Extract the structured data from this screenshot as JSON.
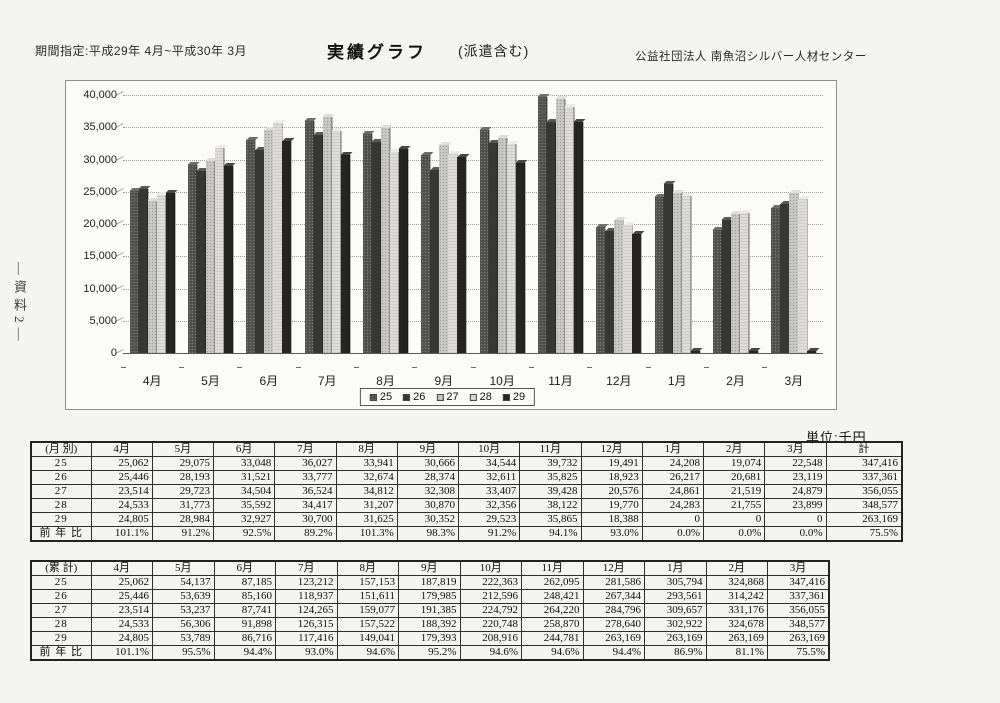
{
  "page": {
    "side_label": "―資料2―",
    "header": {
      "period": "期間指定:平成29年 4月~平成30年 3月",
      "title": "実績グラフ",
      "subtitle": "(派遣含む)",
      "org": "公益社団法人  南魚沼シルバー人材センター"
    },
    "unit_label": "単位:千円"
  },
  "chart_data": {
    "type": "bar",
    "title": "",
    "xlabel": "",
    "ylabel": "",
    "categories": [
      "4月",
      "5月",
      "6月",
      "7月",
      "8月",
      "9月",
      "10月",
      "11月",
      "12月",
      "1月",
      "2月",
      "3月"
    ],
    "series": [
      {
        "name": "25",
        "values": [
          25062,
          29075,
          33048,
          36027,
          33941,
          30666,
          34544,
          39732,
          19491,
          24208,
          19074,
          22548
        ]
      },
      {
        "name": "26",
        "values": [
          25446,
          28193,
          31521,
          33777,
          32674,
          28374,
          32611,
          35825,
          18923,
          26217,
          20681,
          23119
        ]
      },
      {
        "name": "27",
        "values": [
          23514,
          29723,
          34504,
          36524,
          34812,
          32308,
          33407,
          39428,
          20576,
          24861,
          21519,
          24879
        ]
      },
      {
        "name": "28",
        "values": [
          24533,
          31773,
          35592,
          34417,
          31207,
          30870,
          32356,
          38122,
          19770,
          24283,
          21755,
          23899
        ]
      },
      {
        "name": "29",
        "values": [
          24805,
          28984,
          32927,
          30700,
          31625,
          30352,
          29523,
          35865,
          18388,
          0,
          0,
          0
        ]
      }
    ],
    "ylim": [
      0,
      40000
    ],
    "ytick_step": 5000,
    "yticks": [
      "40,000",
      "35,000",
      "30,000",
      "25,000",
      "20,000",
      "15,000",
      "10,000",
      "5,000",
      "0"
    ],
    "grid": true,
    "legend": [
      "25",
      "26",
      "27",
      "28",
      "29"
    ],
    "legend_position": "bottom",
    "series_colors": {
      "25": "#4e4e4c",
      "26": "#373735",
      "27": "#c9c9c6",
      "28": "#dddcd8",
      "29": "#242422"
    }
  },
  "monthly_table": {
    "corner": "(月 別)",
    "columns": [
      "4月",
      "5月",
      "6月",
      "7月",
      "8月",
      "9月",
      "10月",
      "11月",
      "12月",
      "1月",
      "2月",
      "3月",
      "計"
    ],
    "rows": [
      {
        "label": "25",
        "cells": [
          "25,062",
          "29,075",
          "33,048",
          "36,027",
          "33,941",
          "30,666",
          "34,544",
          "39,732",
          "19,491",
          "24,208",
          "19,074",
          "22,548",
          "347,416"
        ]
      },
      {
        "label": "26",
        "cells": [
          "25,446",
          "28,193",
          "31,521",
          "33,777",
          "32,674",
          "28,374",
          "32,611",
          "35,825",
          "18,923",
          "26,217",
          "20,681",
          "23,119",
          "337,361"
        ]
      },
      {
        "label": "27",
        "cells": [
          "23,514",
          "29,723",
          "34,504",
          "36,524",
          "34,812",
          "32,308",
          "33,407",
          "39,428",
          "20,576",
          "24,861",
          "21,519",
          "24,879",
          "356,055"
        ]
      },
      {
        "label": "28",
        "cells": [
          "24,533",
          "31,773",
          "35,592",
          "34,417",
          "31,207",
          "30,870",
          "32,356",
          "38,122",
          "19,770",
          "24,283",
          "21,755",
          "23,899",
          "348,577"
        ]
      },
      {
        "label": "29",
        "cells": [
          "24,805",
          "28,984",
          "32,927",
          "30,700",
          "31,625",
          "30,352",
          "29,523",
          "35,865",
          "18,388",
          "0",
          "0",
          "0",
          "263,169"
        ]
      },
      {
        "label": "前 年 比",
        "cells": [
          "101.1%",
          "91.2%",
          "92.5%",
          "89.2%",
          "101.3%",
          "98.3%",
          "91.2%",
          "94.1%",
          "93.0%",
          "0.0%",
          "0.0%",
          "0.0%",
          "75.5%"
        ]
      }
    ]
  },
  "cumulative_table": {
    "corner": "(累 計)",
    "columns": [
      "4月",
      "5月",
      "6月",
      "7月",
      "8月",
      "9月",
      "10月",
      "11月",
      "12月",
      "1月",
      "2月",
      "3月"
    ],
    "rows": [
      {
        "label": "25",
        "cells": [
          "25,062",
          "54,137",
          "87,185",
          "123,212",
          "157,153",
          "187,819",
          "222,363",
          "262,095",
          "281,586",
          "305,794",
          "324,868",
          "347,416"
        ]
      },
      {
        "label": "26",
        "cells": [
          "25,446",
          "53,639",
          "85,160",
          "118,937",
          "151,611",
          "179,985",
          "212,596",
          "248,421",
          "267,344",
          "293,561",
          "314,242",
          "337,361"
        ]
      },
      {
        "label": "27",
        "cells": [
          "23,514",
          "53,237",
          "87,741",
          "124,265",
          "159,077",
          "191,385",
          "224,792",
          "264,220",
          "284,796",
          "309,657",
          "331,176",
          "356,055"
        ]
      },
      {
        "label": "28",
        "cells": [
          "24,533",
          "56,306",
          "91,898",
          "126,315",
          "157,522",
          "188,392",
          "220,748",
          "258,870",
          "278,640",
          "302,922",
          "324,678",
          "348,577"
        ]
      },
      {
        "label": "29",
        "cells": [
          "24,805",
          "53,789",
          "86,716",
          "117,416",
          "149,041",
          "179,393",
          "208,916",
          "244,781",
          "263,169",
          "263,169",
          "263,169",
          "263,169"
        ]
      },
      {
        "label": "前 年 比",
        "cells": [
          "101.1%",
          "95.5%",
          "94.4%",
          "93.0%",
          "94.6%",
          "95.2%",
          "94.6%",
          "94.6%",
          "94.4%",
          "86.9%",
          "81.1%",
          "75.5%"
        ]
      }
    ]
  }
}
